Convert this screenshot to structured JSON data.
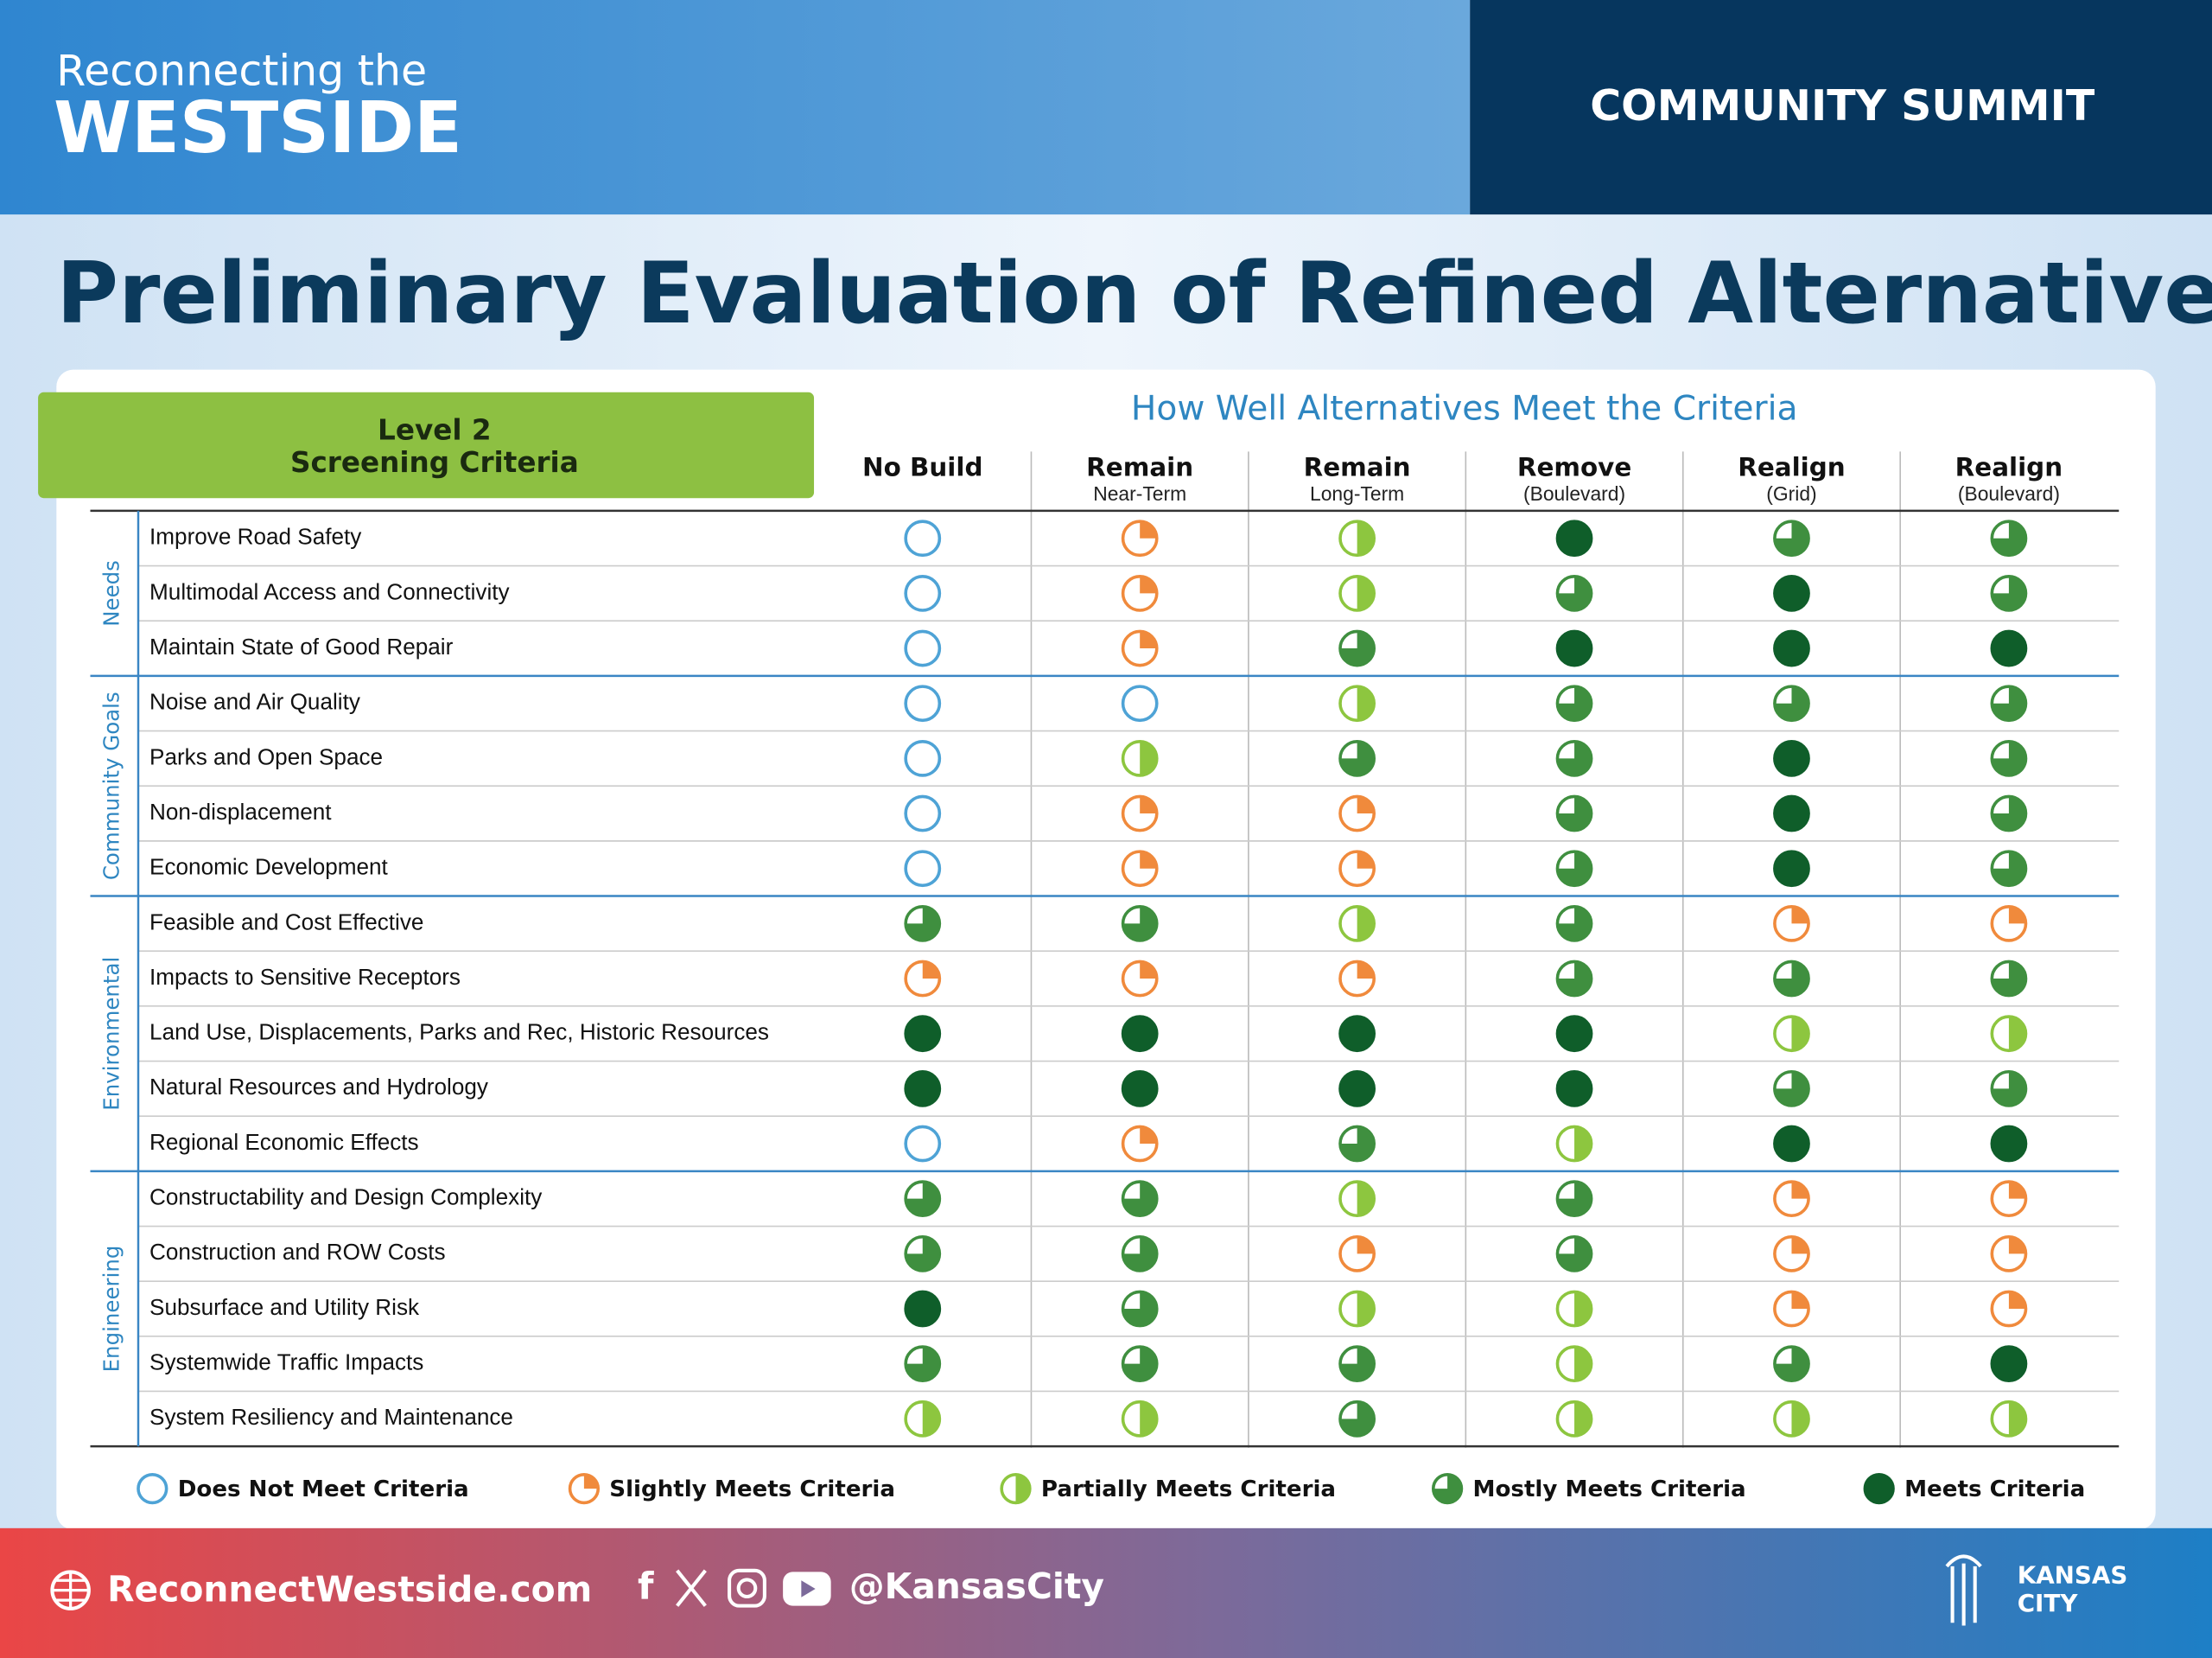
{
  "header": {
    "brand_line1": "Reconnecting the",
    "brand_line2": "WESTSIDE",
    "event": "COMMUNITY SUMMIT"
  },
  "title": "Preliminary Evaluation of Refined Alternatives",
  "criteria_heading": {
    "level": "Level 2",
    "heading": "Screening Criteria"
  },
  "table": {
    "caption": "How Well Alternatives Meet the Criteria",
    "columns": [
      {
        "name": "No Build"
      },
      {
        "name": "Remain",
        "sub": "Near-Term"
      },
      {
        "name": "Remain",
        "sub": "Long-Term"
      },
      {
        "name": "Remove",
        "sub": "(Boulevard)"
      },
      {
        "name": "Realign",
        "sub": "(Grid)"
      },
      {
        "name": "Realign",
        "sub": "(Boulevard)"
      }
    ],
    "groups": [
      {
        "name": "Needs",
        "rows": [
          {
            "criterion": "Improve Road Safety",
            "ratings": [
              0,
              1,
              2,
              4,
              3,
              3
            ]
          },
          {
            "criterion": "Multimodal Access and Connectivity",
            "ratings": [
              0,
              1,
              2,
              3,
              4,
              3
            ]
          },
          {
            "criterion": "Maintain State of Good Repair",
            "ratings": [
              0,
              1,
              3,
              4,
              4,
              4
            ]
          }
        ]
      },
      {
        "name": "Community Goals",
        "rows": [
          {
            "criterion": "Noise and Air Quality",
            "ratings": [
              0,
              0,
              2,
              3,
              3,
              3
            ]
          },
          {
            "criterion": "Parks and Open Space",
            "ratings": [
              0,
              2,
              3,
              3,
              4,
              3
            ]
          },
          {
            "criterion": "Non-displacement",
            "ratings": [
              0,
              1,
              1,
              3,
              4,
              3
            ]
          },
          {
            "criterion": "Economic Development",
            "ratings": [
              0,
              1,
              1,
              3,
              4,
              3
            ]
          }
        ]
      },
      {
        "name": "Environmental",
        "rows": [
          {
            "criterion": "Feasible and Cost Effective",
            "ratings": [
              3,
              3,
              2,
              3,
              1,
              1
            ]
          },
          {
            "criterion": "Impacts to Sensitive Receptors",
            "ratings": [
              1,
              1,
              1,
              3,
              3,
              3
            ]
          },
          {
            "criterion": "Land Use, Displacements, Parks and Rec, Historic Resources",
            "ratings": [
              4,
              4,
              4,
              4,
              2,
              2
            ]
          },
          {
            "criterion": "Natural Resources and Hydrology",
            "ratings": [
              4,
              4,
              4,
              4,
              3,
              3
            ]
          },
          {
            "criterion": "Regional Economic Effects",
            "ratings": [
              0,
              1,
              3,
              2,
              4,
              4
            ]
          }
        ]
      },
      {
        "name": "Engineering",
        "rows": [
          {
            "criterion": "Constructability and Design Complexity",
            "ratings": [
              3,
              3,
              2,
              3,
              1,
              1
            ]
          },
          {
            "criterion": "Construction and ROW Costs",
            "ratings": [
              3,
              3,
              1,
              3,
              1,
              1
            ]
          },
          {
            "criterion": "Subsurface and Utility Risk",
            "ratings": [
              4,
              3,
              2,
              2,
              1,
              1
            ]
          },
          {
            "criterion": "Systemwide Traffic Impacts",
            "ratings": [
              3,
              3,
              3,
              2,
              3,
              4
            ]
          },
          {
            "criterion": "System Resiliency and Maintenance",
            "ratings": [
              2,
              2,
              3,
              2,
              2,
              2
            ]
          }
        ]
      }
    ]
  },
  "legend": [
    {
      "label": "Does Not Meet Criteria",
      "level": 0
    },
    {
      "label": "Slightly Meets Criteria",
      "level": 1
    },
    {
      "label": "Partially Meets Criteria",
      "level": 2
    },
    {
      "label": "Mostly Meets Criteria",
      "level": 3
    },
    {
      "label": "Meets Criteria",
      "level": 4
    }
  ],
  "footer": {
    "website": "ReconnectWestside.com",
    "handle": "@KansasCity",
    "logo_line1": "KANSAS",
    "logo_line2": "CITY"
  }
}
